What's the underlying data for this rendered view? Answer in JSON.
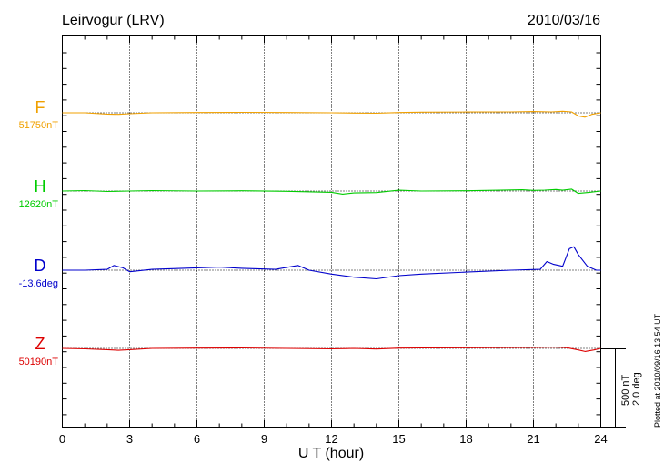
{
  "station_title": "Leirvogur (LRV)",
  "date": "2010/03/16",
  "plotted_note": "Plotted at 2010/09/16 13:54 UT",
  "scale": {
    "nt_label": "500 nT",
    "deg_label": "2.0 deg"
  },
  "chart_data": {
    "type": "line",
    "title": "Leirvogur (LRV)",
    "date": "2010/03/16",
    "xlabel": "U T (hour)",
    "xlim": [
      0,
      24
    ],
    "xticks": [
      "0",
      "3",
      "6",
      "9",
      "12",
      "15",
      "18",
      "21",
      "24"
    ],
    "grid": "dotted vertical lines every 3 hours",
    "channels": [
      {
        "name": "F",
        "baseline": "51750nT",
        "color": "#f0a000",
        "unit": "nT",
        "x": [
          0,
          1,
          2,
          2.5,
          3,
          4,
          6,
          8,
          10,
          12,
          13,
          14,
          15,
          16,
          18,
          20,
          21,
          21.8,
          22.3,
          22.7,
          23.0,
          23.3,
          23.6,
          24
        ],
        "values": [
          0,
          0,
          -8,
          -10,
          -6,
          0,
          2,
          3,
          2,
          0,
          -2,
          -3,
          2,
          4,
          5,
          6,
          8,
          6,
          10,
          6,
          -20,
          -28,
          -10,
          0
        ]
      },
      {
        "name": "H",
        "baseline": "12620nT",
        "color": "#00cc00",
        "unit": "nT",
        "x": [
          0,
          1,
          2,
          3,
          4,
          6,
          8,
          10,
          12,
          12.5,
          13,
          14,
          15,
          16,
          18,
          19.5,
          20.5,
          21,
          21.5,
          22.0,
          22.3,
          22.7,
          23.0,
          23.5,
          24
        ],
        "values": [
          0,
          3,
          -3,
          0,
          3,
          0,
          2,
          -2,
          -8,
          -20,
          -12,
          -10,
          5,
          0,
          2,
          5,
          8,
          4,
          6,
          10,
          5,
          12,
          -15,
          -8,
          0
        ]
      },
      {
        "name": "D",
        "baseline": "-13.6deg",
        "color": "#0000cc",
        "unit": "deg",
        "x": [
          0,
          1,
          2,
          2.3,
          2.7,
          3,
          4,
          6,
          7,
          8,
          9.5,
          10.5,
          11,
          12,
          13,
          14,
          15,
          16,
          18,
          20,
          21.3,
          21.6,
          21.9,
          22.3,
          22.6,
          22.8,
          23.0,
          23.4,
          23.8,
          24
        ],
        "values": [
          0,
          0,
          0.02,
          0.12,
          0.06,
          -0.04,
          0.02,
          0.06,
          0.08,
          0.05,
          0.02,
          0.12,
          0.0,
          -0.1,
          -0.18,
          -0.22,
          -0.14,
          -0.1,
          -0.05,
          0.0,
          0.02,
          0.22,
          0.15,
          0.1,
          0.55,
          0.6,
          0.4,
          0.1,
          0.0,
          0.0
        ]
      },
      {
        "name": "Z",
        "baseline": "50190nT",
        "color": "#dd0000",
        "unit": "nT",
        "x": [
          0,
          1,
          2,
          2.5,
          3,
          4,
          6,
          8,
          10,
          12,
          13,
          14,
          15,
          16,
          18,
          20,
          21,
          22,
          22.5,
          23.0,
          23.3,
          23.7,
          24
        ],
        "values": [
          0,
          -3,
          -8,
          -12,
          -8,
          0,
          2,
          3,
          0,
          -3,
          0,
          -4,
          2,
          3,
          4,
          5,
          6,
          8,
          4,
          -10,
          -20,
          -10,
          0
        ]
      }
    ]
  }
}
